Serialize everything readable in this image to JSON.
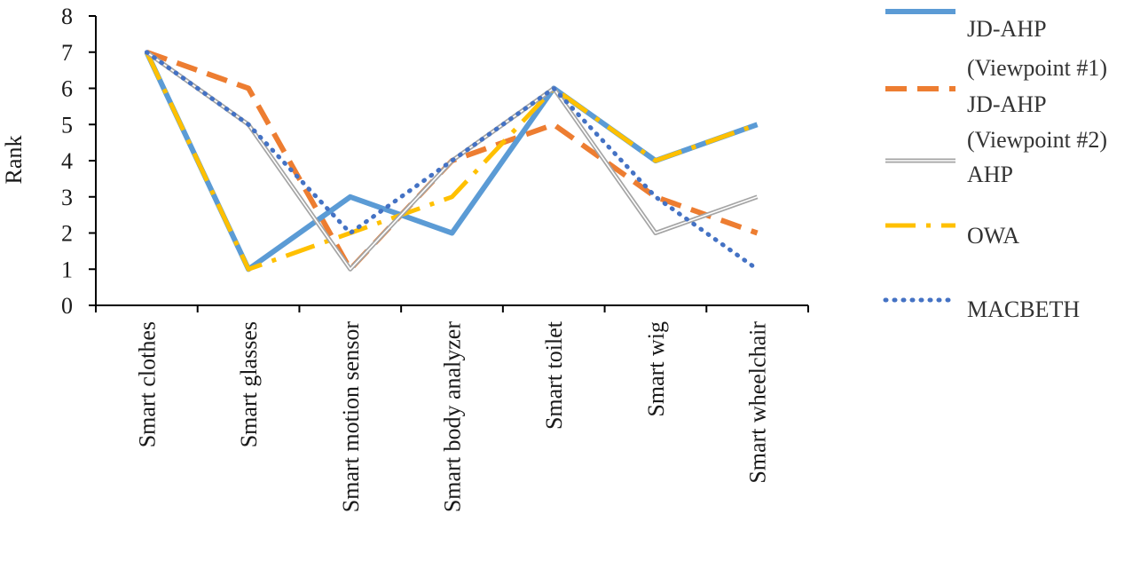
{
  "chart_data": {
    "type": "line",
    "ylabel": "Rank",
    "xlabel": "",
    "ylim": [
      0,
      8
    ],
    "yticks": [
      "0",
      "1",
      "2",
      "3",
      "4",
      "5",
      "6",
      "7",
      "8"
    ],
    "categories": [
      "Smart clothes",
      "Smart glasses",
      "Smart motion sensor",
      "Smart body analyzer",
      "Smart toilet",
      "Smart wig",
      "Smart wheelchair"
    ],
    "grid": false,
    "legend_position": "right",
    "series": [
      {
        "name": "JD-AHP (Viewpoint #1)",
        "label_lines": [
          "JD-AHP",
          "(Viewpoint #1)"
        ],
        "values": [
          7,
          1,
          3,
          2,
          6,
          4,
          5
        ],
        "color": "#5B9BD5",
        "style": "solid"
      },
      {
        "name": "JD-AHP (Viewpoint #2)",
        "label_lines": [
          "JD-AHP",
          "(Viewpoint #2)"
        ],
        "values": [
          7,
          6,
          1,
          4,
          5,
          3,
          2
        ],
        "color": "#ED7D31",
        "style": "dash"
      },
      {
        "name": "AHP",
        "label_lines": [
          "AHP"
        ],
        "values": [
          7,
          5,
          1,
          4,
          6,
          2,
          3
        ],
        "color": "#A5A5A5",
        "style": "double"
      },
      {
        "name": "OWA",
        "label_lines": [
          "OWA"
        ],
        "values": [
          7,
          1,
          2,
          3,
          6,
          4,
          5
        ],
        "color": "#FFC000",
        "style": "dashdot"
      },
      {
        "name": "MACBETH",
        "label_lines": [
          "MACBETH"
        ],
        "values": [
          7,
          5,
          2,
          4,
          6,
          3,
          1
        ],
        "color": "#4472C4",
        "style": "dot"
      }
    ]
  }
}
